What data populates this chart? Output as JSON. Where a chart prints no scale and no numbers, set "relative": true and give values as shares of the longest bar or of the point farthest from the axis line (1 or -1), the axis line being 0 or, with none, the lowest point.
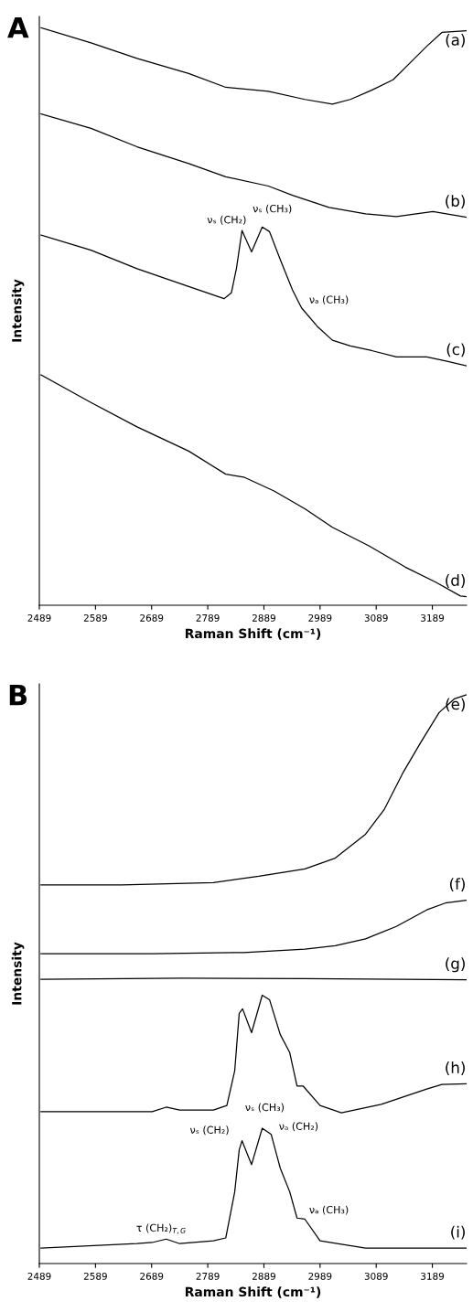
{
  "chart_data": [
    {
      "type": "line",
      "title": "A",
      "xlabel": "Raman Shift (cm⁻¹)",
      "ylabel": "Intensity",
      "relative": true,
      "xlim": [
        2489,
        3250
      ],
      "xticks": [
        2489,
        2589,
        2689,
        2789,
        2889,
        2989,
        3089,
        3189
      ],
      "series": [
        {
          "name": "(a)",
          "color": "#000000",
          "x": [
            2492,
            2581,
            2663,
            2755,
            2821,
            2897,
            2962,
            3011,
            3043,
            3081,
            3119,
            3152,
            3179,
            3206,
            3249
          ],
          "values": [
            1.0,
            0.974,
            0.947,
            0.921,
            0.897,
            0.89,
            0.876,
            0.868,
            0.876,
            0.892,
            0.91,
            0.942,
            0.968,
            0.992,
            0.995
          ]
        },
        {
          "name": "(b)",
          "color": "#000000",
          "x": [
            2492,
            2581,
            2663,
            2755,
            2821,
            2897,
            2940,
            3005,
            3070,
            3125,
            3190,
            3249
          ],
          "values": [
            0.851,
            0.826,
            0.794,
            0.765,
            0.742,
            0.726,
            0.71,
            0.689,
            0.678,
            0.673,
            0.682,
            0.672
          ]
        },
        {
          "name": "(c)",
          "color": "#000000",
          "x": [
            2492,
            2581,
            2663,
            2755,
            2818,
            2831,
            2840,
            2850,
            2867,
            2886,
            2899,
            2918,
            2940,
            2956,
            2984,
            3011,
            3043,
            3081,
            3125,
            3179,
            3217,
            3249
          ],
          "values": [
            0.641,
            0.615,
            0.583,
            0.552,
            0.531,
            0.541,
            0.583,
            0.649,
            0.612,
            0.655,
            0.647,
            0.599,
            0.546,
            0.515,
            0.483,
            0.459,
            0.449,
            0.441,
            0.43,
            0.43,
            0.422,
            0.415
          ]
        },
        {
          "name": "(d)",
          "color": "#000000",
          "x": [
            2492,
            2581,
            2663,
            2755,
            2821,
            2853,
            2907,
            2962,
            3011,
            3076,
            3141,
            3195,
            3239,
            3249
          ],
          "values": [
            0.399,
            0.351,
            0.309,
            0.267,
            0.227,
            0.222,
            0.198,
            0.167,
            0.135,
            0.103,
            0.066,
            0.04,
            0.016,
            0.015
          ]
        }
      ],
      "annotations": [
        {
          "text": "νₛ (CH₂)",
          "x": 2850,
          "y": 0.649
        },
        {
          "text": "νₛ (CH₃)",
          "x": 2886,
          "y": 0.655
        },
        {
          "text": "νₐ (CH₃)",
          "x": 2956,
          "y": 0.515
        }
      ]
    },
    {
      "type": "line",
      "title": "B",
      "xlabel": "Raman Shift (cm⁻¹)",
      "ylabel": "Intensity",
      "relative": true,
      "xlim": [
        2489,
        3250
      ],
      "xticks": [
        2489,
        2589,
        2689,
        2789,
        2889,
        2989,
        3089,
        3189
      ],
      "series": [
        {
          "name": "(e)",
          "color": "#000000",
          "x": [
            2492,
            2636,
            2799,
            2880,
            2962,
            3016,
            3070,
            3103,
            3136,
            3168,
            3201,
            3228,
            3249
          ],
          "values": [
            0.666,
            0.666,
            0.67,
            0.681,
            0.694,
            0.713,
            0.755,
            0.798,
            0.862,
            0.916,
            0.969,
            0.993,
            1.0
          ]
        },
        {
          "name": "(f)",
          "color": "#000000",
          "x": [
            2492,
            2690,
            2853,
            2962,
            3016,
            3070,
            3125,
            3179,
            3212,
            3249
          ],
          "values": [
            0.545,
            0.545,
            0.547,
            0.553,
            0.559,
            0.571,
            0.593,
            0.622,
            0.634,
            0.639
          ]
        },
        {
          "name": "(g)",
          "color": "#000000",
          "x": [
            2492,
            2744,
            2962,
            3249
          ],
          "values": [
            0.5,
            0.502,
            0.501,
            0.499
          ]
        },
        {
          "name": "(h)",
          "color": "#000000",
          "x": [
            2492,
            2690,
            2715,
            2739,
            2799,
            2823,
            2837,
            2845,
            2851,
            2867,
            2886,
            2899,
            2918,
            2935,
            2948,
            2959,
            2989,
            3027,
            3098,
            3179,
            3206,
            3249
          ],
          "values": [
            0.267,
            0.267,
            0.275,
            0.27,
            0.27,
            0.278,
            0.339,
            0.44,
            0.448,
            0.406,
            0.472,
            0.464,
            0.403,
            0.371,
            0.312,
            0.312,
            0.278,
            0.265,
            0.28,
            0.307,
            0.315,
            0.316
          ]
        },
        {
          "name": "(i)",
          "color": "#000000",
          "x": [
            2492,
            2663,
            2690,
            2715,
            2739,
            2799,
            2821,
            2837,
            2845,
            2850,
            2867,
            2886,
            2902,
            2918,
            2935,
            2948,
            2962,
            2989,
            3070,
            3249
          ],
          "values": [
            0.027,
            0.035,
            0.037,
            0.043,
            0.035,
            0.04,
            0.045,
            0.126,
            0.2,
            0.216,
            0.174,
            0.238,
            0.227,
            0.168,
            0.126,
            0.08,
            0.078,
            0.04,
            0.027,
            0.027
          ]
        }
      ],
      "annotations": [
        {
          "text": "τ (CH₂)$_{T,G}$",
          "x": 2715,
          "y": 0.043
        },
        {
          "text": "νₛ (CH₂)",
          "x": 2850,
          "y": 0.216
        },
        {
          "text": "νₛ (CH₃)",
          "x": 2886,
          "y": 0.238
        },
        {
          "text": "νₐ (CH₂)",
          "x": 2902,
          "y": 0.227
        },
        {
          "text": "νₐ (CH₃)",
          "x": 2956,
          "y": 0.08
        }
      ]
    }
  ]
}
